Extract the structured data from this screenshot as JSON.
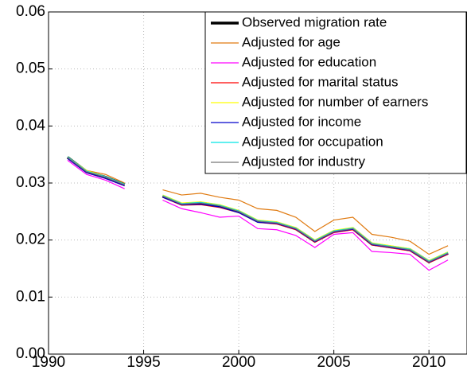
{
  "chart_data": {
    "type": "line",
    "x": [
      1991,
      1992,
      1993,
      1994,
      1995,
      1996,
      1997,
      1998,
      1999,
      2000,
      2001,
      2002,
      2003,
      2004,
      2005,
      2006,
      2007,
      2008,
      2009,
      2010,
      2011
    ],
    "series": [
      {
        "name": "Observed migration rate",
        "color": "#000000",
        "values": [
          0.0345,
          0.032,
          0.031,
          0.0297,
          null,
          0.0277,
          0.0263,
          0.0265,
          0.026,
          0.025,
          0.0233,
          0.023,
          0.022,
          0.0198,
          0.0215,
          0.022,
          0.0193,
          0.0188,
          0.0183,
          0.0162,
          0.0177
        ]
      },
      {
        "name": "Adjusted for age",
        "color": "#e07b12",
        "values": [
          0.0345,
          0.0322,
          0.0315,
          0.03,
          null,
          0.0288,
          0.0279,
          0.0282,
          0.0275,
          0.027,
          0.0255,
          0.0252,
          0.024,
          0.0215,
          0.0235,
          0.024,
          0.021,
          0.0205,
          0.0198,
          0.0175,
          0.019
        ]
      },
      {
        "name": "Adjusted for education",
        "color": "#ff00ff",
        "values": [
          0.034,
          0.0315,
          0.0305,
          0.029,
          null,
          0.027,
          0.0255,
          0.0248,
          0.024,
          0.0242,
          0.022,
          0.0218,
          0.0208,
          0.0187,
          0.021,
          0.0213,
          0.018,
          0.0178,
          0.0175,
          0.0147,
          0.0165
        ]
      },
      {
        "name": "Adjusted for marital status",
        "color": "#ff0000",
        "values": [
          0.0343,
          0.0318,
          0.0308,
          0.0295,
          null,
          0.0275,
          0.0261,
          0.0262,
          0.0257,
          0.0248,
          0.0231,
          0.0228,
          0.0218,
          0.0196,
          0.0213,
          0.0218,
          0.0191,
          0.0186,
          0.0181,
          0.016,
          0.0175
        ]
      },
      {
        "name": "Adjusted for number of earners",
        "color": "#ffff00",
        "values": [
          0.0346,
          0.0322,
          0.0311,
          0.0298,
          null,
          0.0279,
          0.0265,
          0.0267,
          0.0262,
          0.0252,
          0.0235,
          0.0232,
          0.0222,
          0.02,
          0.0217,
          0.0222,
          0.0195,
          0.019,
          0.0185,
          0.0164,
          0.0179
        ]
      },
      {
        "name": "Adjusted for income",
        "color": "#0000cc",
        "values": [
          0.0343,
          0.0318,
          0.0308,
          0.0295,
          null,
          0.0275,
          0.0262,
          0.0263,
          0.0258,
          0.0248,
          0.0231,
          0.0229,
          0.0219,
          0.0197,
          0.0214,
          0.0219,
          0.0192,
          0.0187,
          0.0182,
          0.0161,
          0.0176
        ]
      },
      {
        "name": "Adjusted for occupation",
        "color": "#00e5e5",
        "values": [
          0.0346,
          0.0321,
          0.0311,
          0.0298,
          null,
          0.0278,
          0.0264,
          0.0266,
          0.0261,
          0.0251,
          0.0234,
          0.0231,
          0.0221,
          0.0199,
          0.0216,
          0.0221,
          0.0194,
          0.0189,
          0.0184,
          0.0163,
          0.0178
        ]
      },
      {
        "name": "Adjusted for industry",
        "color": "#777777",
        "values": [
          0.0345,
          0.032,
          0.031,
          0.0297,
          null,
          0.0277,
          0.0263,
          0.0265,
          0.026,
          0.025,
          0.0233,
          0.023,
          0.022,
          0.0198,
          0.0215,
          0.022,
          0.0193,
          0.0188,
          0.0183,
          0.0162,
          0.0177
        ]
      }
    ],
    "xlim": [
      1990,
      2012
    ],
    "xticks": [
      1990,
      1995,
      2000,
      2005,
      2010
    ],
    "ylim": [
      0,
      0.06
    ],
    "yticks": [
      {
        "value": 0,
        "label": "0.00"
      },
      0.01,
      0.02,
      0.03,
      0.04,
      0.05,
      0.06
    ],
    "grid": true,
    "legend": "top-right"
  }
}
